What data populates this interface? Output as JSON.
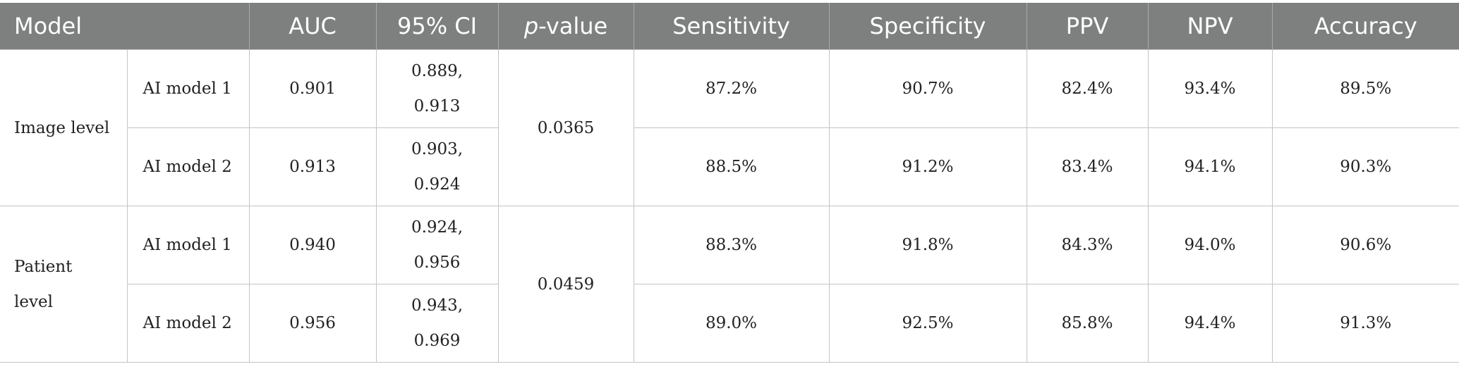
{
  "headers": {
    "model": "Model",
    "auc": "AUC",
    "ci": "95% CI",
    "p_italic": "p",
    "p_rest": "-value",
    "sensitivity": "Sensitivity",
    "specificity": "Specificity",
    "ppv": "PPV",
    "npv": "NPV",
    "accuracy": "Accuracy"
  },
  "groups": [
    {
      "label": "Image level",
      "p_value": "0.0365",
      "rows": [
        {
          "model": "AI model 1",
          "auc": "0.901",
          "ci_low": "0.889,",
          "ci_high": "0.913",
          "sensitivity": "87.2%",
          "specificity": "90.7%",
          "ppv": "82.4%",
          "npv": "93.4%",
          "accuracy": "89.5%"
        },
        {
          "model": "AI model 2",
          "auc": "0.913",
          "ci_low": "0.903,",
          "ci_high": "0.924",
          "sensitivity": "88.5%",
          "specificity": "91.2%",
          "ppv": "83.4%",
          "npv": "94.1%",
          "accuracy": "90.3%"
        }
      ]
    },
    {
      "label_line1": "Patient",
      "label_line2": "level",
      "p_value": "0.0459",
      "rows": [
        {
          "model": "AI model 1",
          "auc": "0.940",
          "ci_low": "0.924,",
          "ci_high": "0.956",
          "sensitivity": "88.3%",
          "specificity": "91.8%",
          "ppv": "84.3%",
          "npv": "94.0%",
          "accuracy": "90.6%"
        },
        {
          "model": "AI model 2",
          "auc": "0.956",
          "ci_low": "0.943,",
          "ci_high": "0.969",
          "sensitivity": "89.0%",
          "specificity": "92.5%",
          "ppv": "85.8%",
          "npv": "94.4%",
          "accuracy": "91.3%"
        }
      ]
    }
  ]
}
